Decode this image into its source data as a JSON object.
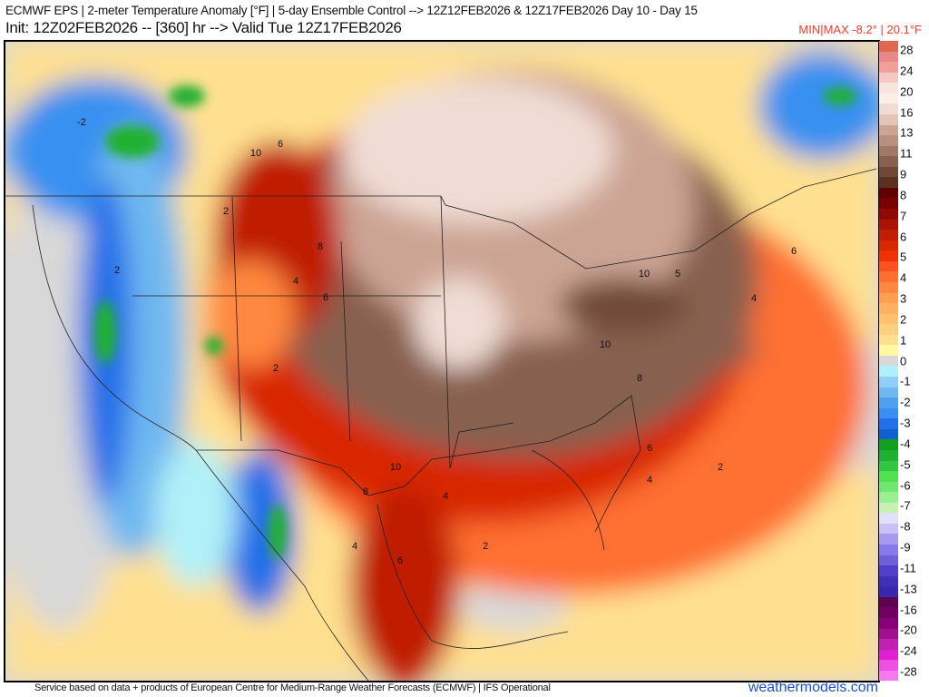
{
  "header": {
    "title": "ECMWF EPS | 2-meter Temperature Anomaly [°F] | 5-day Ensemble Control --> 12Z12FEB2026 & 12Z17FEB2026   Day 10 - Day 15",
    "subtitle": "Init: 12Z02FEB2026 -- [360] hr --> Valid Tue 12Z17FEB2026",
    "minmax": "MIN|MAX -8.2° | 20.1°F"
  },
  "legend": {
    "labels": [
      "28",
      "24",
      "20",
      "16",
      "13",
      "11",
      "9",
      "8",
      "7",
      "6",
      "5",
      "4",
      "3",
      "2",
      "1",
      "0",
      "-1",
      "-2",
      "-3",
      "-4",
      "-5",
      "-6",
      "-7",
      "-8",
      "-9",
      "-11",
      "-13",
      "-16",
      "-20",
      "-24",
      "-28"
    ],
    "colors": [
      "#e0684e",
      "#e88888",
      "#f0a098",
      "#f5c8c0",
      "#f8e6de",
      "#faf0e8",
      "#f0dcd4",
      "#e2c4b8",
      "#cca494",
      "#b89080",
      "#a07868",
      "#886050",
      "#704838",
      "#5a3020",
      "#600000",
      "#780000",
      "#900a00",
      "#a81400",
      "#c01e00",
      "#d82800",
      "#f03200",
      "#ff5020",
      "#ff7030",
      "#ff8840",
      "#ffa050",
      "#ffb060",
      "#ffc070",
      "#ffd080",
      "#ffe090",
      "#fffaa0",
      "#d8d8d8",
      "#b0f0f8",
      "#90d0f8",
      "#70b8f0",
      "#50a0f0",
      "#3890f0",
      "#2070e8",
      "#1060d0",
      "#10a020",
      "#20b030",
      "#30c840",
      "#50e050",
      "#70e870",
      "#98f090",
      "#c8f0b0",
      "#e0e0f8",
      "#c8c0f8",
      "#a898f0",
      "#8878e8",
      "#7060d8",
      "#5040c8",
      "#4030b8",
      "#3828b0",
      "#600050",
      "#700060",
      "#880078",
      "#a0108f",
      "#c020b0",
      "#e020d0",
      "#f050e0",
      "#f878f0"
    ]
  },
  "map": {
    "contour_labels": [
      "-2",
      "10",
      "6",
      "2",
      "8",
      "4",
      "6",
      "2",
      "2",
      "10",
      "5",
      "6",
      "4",
      "10",
      "8",
      "6",
      "4",
      "2",
      "10",
      "8",
      "4",
      "2",
      "4",
      "6"
    ]
  },
  "footer": {
    "credit": "Service based on data + products of European Centre for Medium-Range Weather Forecasts (ECMWF) | IFS Operational",
    "brand": "weathermodels.com"
  }
}
